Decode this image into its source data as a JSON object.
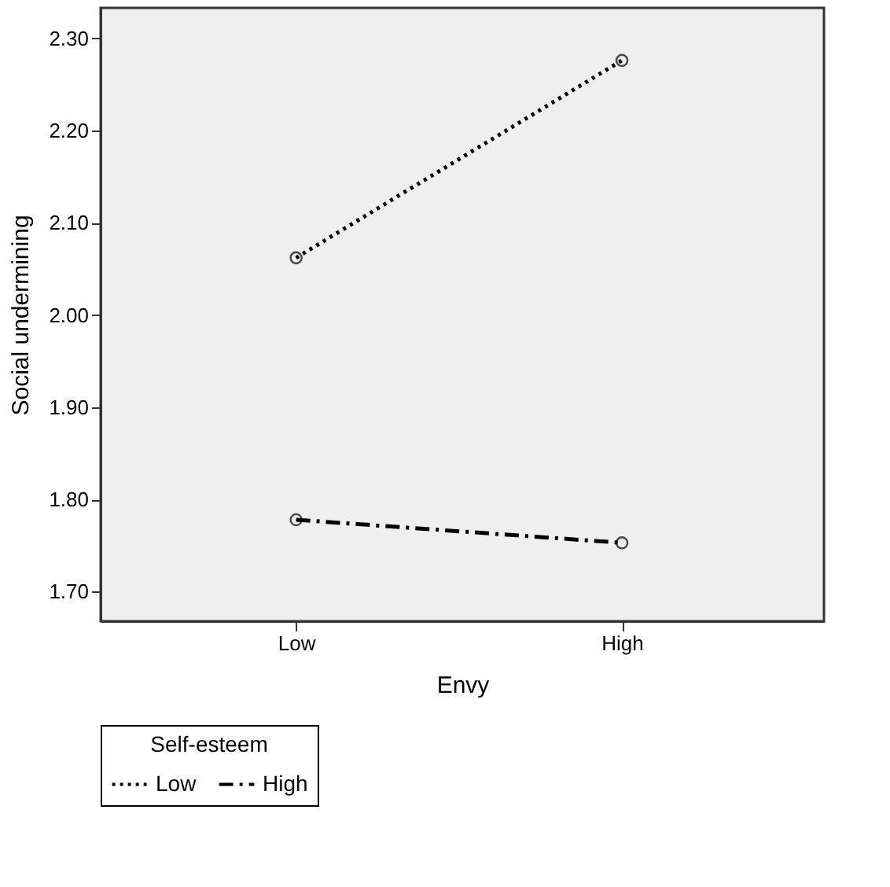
{
  "chart_data": {
    "type": "line",
    "xlabel": "Envy",
    "ylabel": "Social undermining",
    "legend_title": "Self-esteem",
    "legend": "bottom",
    "grid": false,
    "marker": "circle",
    "categories": [
      "Low",
      "High"
    ],
    "ylim": [
      1.668,
      2.333
    ],
    "yticks": [
      {
        "value": 1.7,
        "label": "1.70"
      },
      {
        "value": 1.8,
        "label": "1.80"
      },
      {
        "value": 1.9,
        "label": "1.90"
      },
      {
        "value": 2.0,
        "label": "2.00"
      },
      {
        "value": 2.1,
        "label": "2.10"
      },
      {
        "value": 2.2,
        "label": "2.20"
      },
      {
        "value": 2.3,
        "label": "2.30"
      }
    ],
    "series": [
      {
        "name": "Low",
        "color": "#000000",
        "line_style": "dotted",
        "values": [
          2.062,
          2.276
        ]
      },
      {
        "name": "High",
        "color": "#000000",
        "line_style": "dashed",
        "values": [
          1.778,
          1.753
        ]
      }
    ]
  }
}
